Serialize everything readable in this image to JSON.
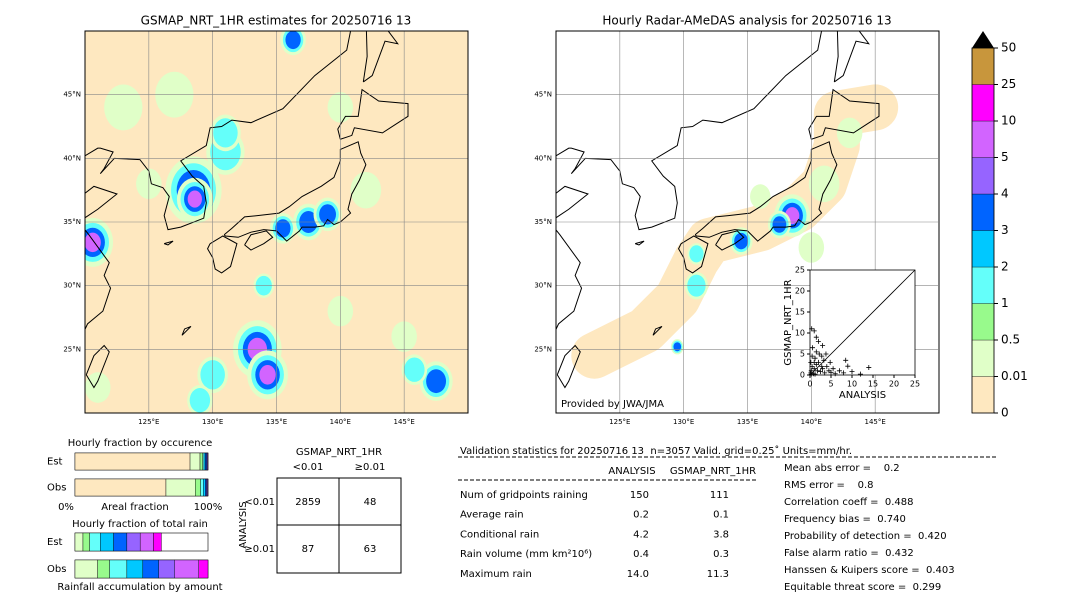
{
  "left_map": {
    "title": "GSMAP_NRT_1HR estimates for 20250716 13",
    "lat_labels": [
      "45°N",
      "40°N",
      "35°N",
      "30°N",
      "25°N"
    ],
    "lon_labels": [
      "125°E",
      "130°E",
      "135°E",
      "140°E",
      "145°E"
    ]
  },
  "right_map": {
    "title": "Hourly Radar-AMeDAS analysis for 20250716 13",
    "lat_labels": [
      "45°N",
      "40°N",
      "35°N",
      "30°N",
      "25°N"
    ],
    "lon_labels": [
      "125°E",
      "130°E",
      "135°E",
      "140°E",
      "145°E"
    ],
    "credit": "Provided by JWA/JMA"
  },
  "colorbar": {
    "levels": [
      0,
      0.01,
      0.5,
      1,
      2,
      3,
      4,
      5,
      10,
      25,
      50
    ],
    "colors": [
      "#fee8c0",
      "#e0ffc8",
      "#98fa8c",
      "#64fffa",
      "#00c8ff",
      "#0064ff",
      "#9664ff",
      "#d264ff",
      "#ff00ff",
      "#c8963c"
    ],
    "extend_color": "#000000"
  },
  "scatter": {
    "type": "scatter",
    "xlabel": "ANALYSIS",
    "ylabel": "GSMAP_NRT_1HR",
    "xlim": [
      0,
      25
    ],
    "ylim": [
      0,
      25
    ],
    "xticks": [
      0,
      5,
      10,
      15,
      20,
      25
    ],
    "yticks": [
      0,
      5,
      10,
      15,
      20,
      25
    ],
    "x": [
      0.2,
      0.3,
      0.5,
      0.8,
      1,
      1,
      1.2,
      1.5,
      1.8,
      2,
      2.2,
      2.5,
      2.8,
      3,
      3.3,
      3.5,
      4,
      4.5,
      5,
      5.5,
      6,
      7,
      8,
      9,
      10,
      12,
      14,
      0.4,
      1,
      1.5,
      2,
      3,
      0.6,
      1.5,
      2.8,
      0.2,
      0.5,
      3.8,
      4.8,
      8.5,
      0.3,
      1.2
    ],
    "y": [
      0.5,
      1,
      2,
      0.3,
      1.5,
      3,
      4,
      2.5,
      1,
      3,
      5,
      0.8,
      2,
      1.5,
      3.5,
      0.5,
      2,
      1,
      0.6,
      1.5,
      0.3,
      1,
      0.5,
      2.1,
      0.8,
      0.2,
      1.8,
      11,
      10.5,
      9,
      8,
      7,
      6.5,
      5.5,
      4.5,
      3,
      4.5,
      5,
      3,
      3.5,
      0.2,
      0.2
    ]
  },
  "occurrence": {
    "title": "Hourly fraction by occurence",
    "rows": [
      "Est",
      "Obs"
    ],
    "est": [
      0.865,
      0.075,
      0.02,
      0.01,
      0.01,
      0.01,
      0.005,
      0.005
    ],
    "obs": [
      0.684,
      0.22,
      0.04,
      0.02,
      0.015,
      0.01,
      0.006,
      0.005
    ],
    "axis_labels": [
      "0%",
      "Areal fraction",
      "100%"
    ]
  },
  "accumulation": {
    "title": "Hourly fraction of total rain",
    "rows": [
      "Est",
      "Obs"
    ],
    "est": [
      0,
      0.06,
      0.05,
      0.08,
      0.1,
      0.1,
      0.1,
      0.1,
      0.06
    ],
    "obs": [
      0,
      0.17,
      0.09,
      0.13,
      0.12,
      0.12,
      0.12,
      0.18,
      0.07
    ],
    "footer": "Rainfall accumulation by amount"
  },
  "contingency": {
    "title": "GSMAP_NRT_1HR",
    "columns": [
      "<0.01",
      "≥0.01"
    ],
    "side": "ANALYSIS",
    "rows": [
      {
        "label": "<0.01",
        "cells": [
          "2859",
          "48"
        ]
      },
      {
        "label": "≥0.01",
        "cells": [
          "87",
          "63"
        ]
      }
    ]
  },
  "validation": {
    "header": "Validation statistics for 20250716 13  n=3057 Valid. grid=0.25˚ Units=mm/hr.",
    "columns": [
      "ANALYSIS",
      "GSMAP_NRT_1HR"
    ],
    "rows": [
      [
        "Num of gridpoints raining",
        "150",
        "111"
      ],
      [
        "Average rain",
        "0.2",
        "0.1"
      ],
      [
        "Conditional rain",
        "4.2",
        "3.8"
      ],
      [
        "Rain volume (mm km²10⁶)",
        "0.4",
        "0.3"
      ],
      [
        "Maximum rain",
        "14.0",
        "11.3"
      ]
    ],
    "scores": [
      "Mean abs error =    0.2",
      "RMS error =    0.8",
      "Correlation coeff =  0.488",
      "Frequency bias =  0.740",
      "Probability of detection =  0.420",
      "False alarm ratio =  0.432",
      "Hanssen & Kuipers score =  0.403",
      "Equitable threat score =  0.299"
    ]
  }
}
